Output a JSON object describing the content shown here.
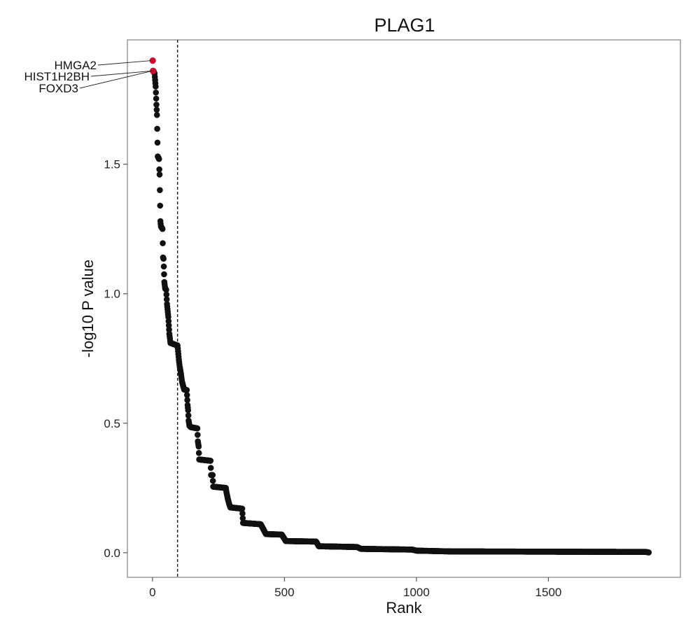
{
  "chart_data": {
    "type": "scatter",
    "title": "PLAG1",
    "xlabel": "Rank",
    "ylabel": "-log10 P value",
    "xlim": [
      -95,
      2000
    ],
    "ylim": [
      -0.095,
      1.98
    ],
    "x_ticks": [
      0,
      500,
      1000,
      1500
    ],
    "x_tick_labels": [
      "0",
      "500",
      "1000",
      "1500"
    ],
    "y_ticks": [
      0.0,
      0.5,
      1.0,
      1.5
    ],
    "y_tick_labels": [
      "0.0",
      "0.5",
      "1.0",
      "1.5"
    ],
    "grid": false,
    "cutoff_rank": 95,
    "colors": {
      "highlight": "#c8102e",
      "points": "#111111"
    },
    "highlighted": [
      {
        "label": "HMGA2",
        "rank": 1,
        "value": 1.9
      },
      {
        "label": "HIST1H2BH",
        "rank": 2,
        "value": 1.86
      },
      {
        "label": "FOXD3",
        "rank": 3,
        "value": 1.86
      }
    ],
    "profile": [
      [
        4,
        1.86
      ],
      [
        8,
        1.85
      ],
      [
        12,
        1.8
      ],
      [
        15,
        1.73
      ],
      [
        17,
        1.69
      ],
      [
        20,
        1.53
      ],
      [
        25,
        1.52
      ],
      [
        26,
        1.48
      ],
      [
        27,
        1.46
      ],
      [
        28,
        1.4
      ],
      [
        30,
        1.28
      ],
      [
        32,
        1.26
      ],
      [
        38,
        1.25
      ],
      [
        40,
        1.14
      ],
      [
        42,
        1.135
      ],
      [
        45,
        1.045
      ],
      [
        48,
        1.02
      ],
      [
        52,
        1.015
      ],
      [
        55,
        0.96
      ],
      [
        60,
        0.91
      ],
      [
        64,
        0.845
      ],
      [
        68,
        0.81
      ],
      [
        95,
        0.8
      ],
      [
        100,
        0.745
      ],
      [
        103,
        0.72
      ],
      [
        108,
        0.69
      ],
      [
        112,
        0.66
      ],
      [
        120,
        0.63
      ],
      [
        130,
        0.628
      ],
      [
        133,
        0.57
      ],
      [
        135,
        0.55
      ],
      [
        137,
        0.51
      ],
      [
        140,
        0.49
      ],
      [
        145,
        0.485
      ],
      [
        170,
        0.48
      ],
      [
        172,
        0.43
      ],
      [
        175,
        0.41
      ],
      [
        177,
        0.36
      ],
      [
        220,
        0.355
      ],
      [
        222,
        0.3
      ],
      [
        228,
        0.3
      ],
      [
        230,
        0.255
      ],
      [
        278,
        0.25
      ],
      [
        280,
        0.235
      ],
      [
        285,
        0.21
      ],
      [
        290,
        0.19
      ],
      [
        295,
        0.175
      ],
      [
        340,
        0.17
      ],
      [
        343,
        0.115
      ],
      [
        410,
        0.11
      ],
      [
        430,
        0.072
      ],
      [
        490,
        0.07
      ],
      [
        505,
        0.045
      ],
      [
        620,
        0.043
      ],
      [
        630,
        0.025
      ],
      [
        775,
        0.022
      ],
      [
        790,
        0.015
      ],
      [
        985,
        0.012
      ],
      [
        1000,
        0.008
      ],
      [
        1130,
        0.005
      ],
      [
        1870,
        0.003
      ],
      [
        1880,
        0.001
      ]
    ]
  }
}
